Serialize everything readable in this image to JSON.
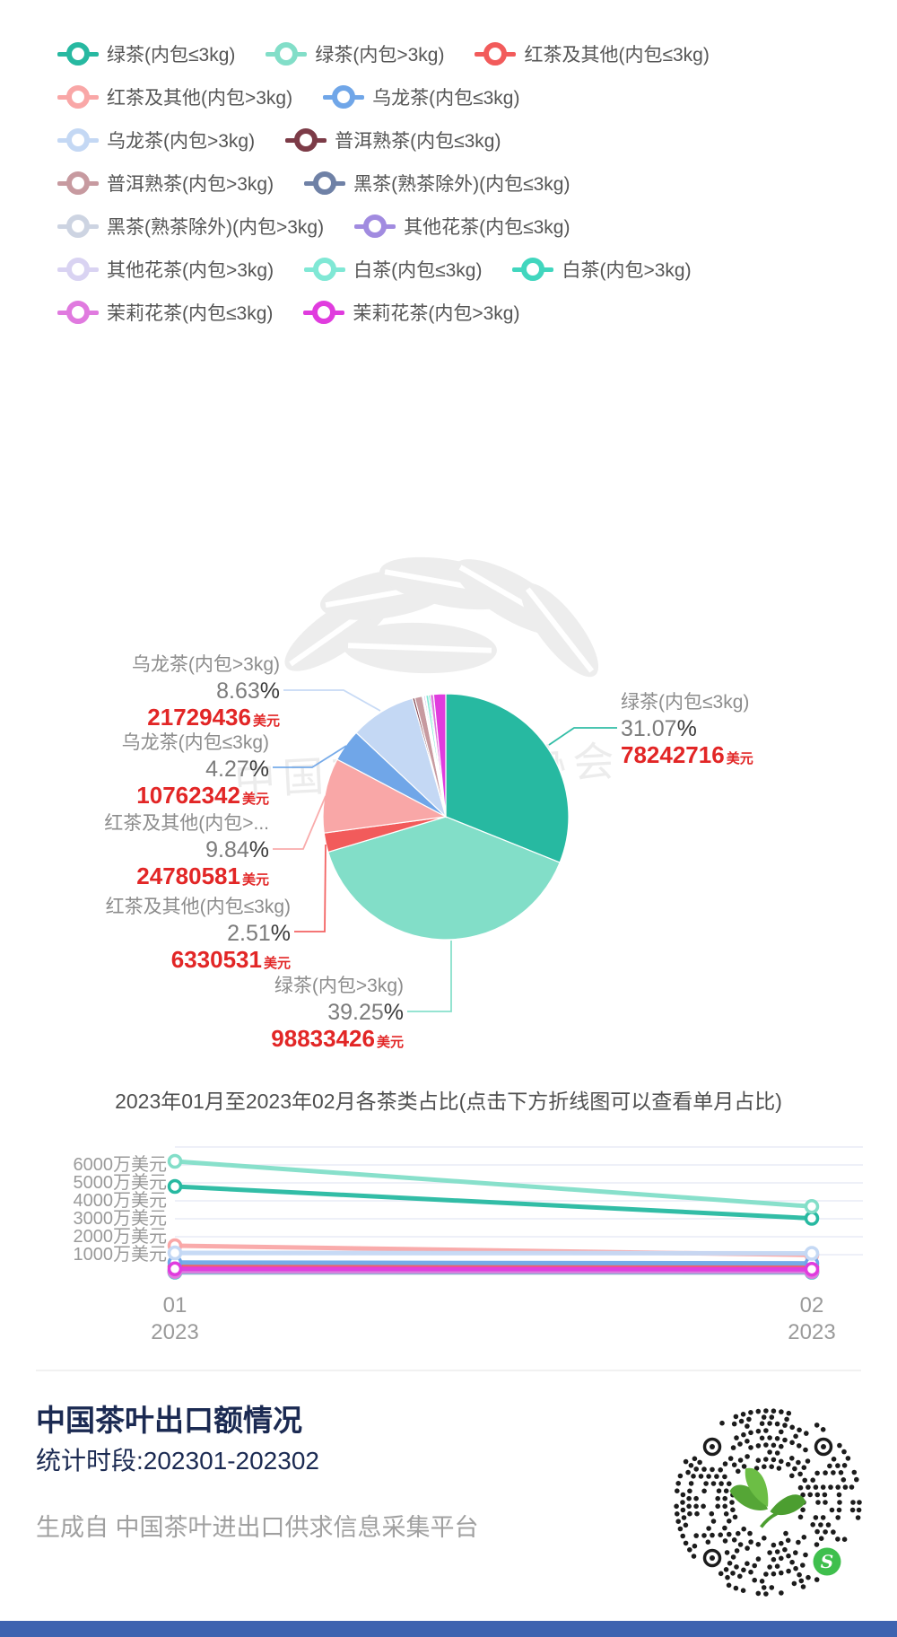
{
  "colors": {
    "money_red": "#E22626",
    "footer_navy": "#1b2a52",
    "bottom_bar_blue": "#3E63B0",
    "grid_line": "#e8ecf5"
  },
  "watermark_text": "中国茶叶流通协会",
  "chart_data": [
    {
      "type": "pie",
      "title": "",
      "series": [
        {
          "id": "green_le",
          "name": "绿茶(内包≤3kg)",
          "color": "#27B9A1",
          "pie_pct": 31.07,
          "value_usd": 78242716
        },
        {
          "id": "green_gt",
          "name": "绿茶(内包>3kg)",
          "color": "#82DEC8",
          "pie_pct": 39.25,
          "value_usd": 98833426
        },
        {
          "id": "black_le",
          "name": "红茶及其他(内包≤3kg)",
          "color": "#F25B5B",
          "pie_pct": 2.51,
          "value_usd": 6330531
        },
        {
          "id": "black_gt",
          "name": "红茶及其他(内包>3kg)",
          "color": "#F9A7A7",
          "pie_pct": 9.84,
          "value_usd": 24780581
        },
        {
          "id": "oolong_le",
          "name": "乌龙茶(内包≤3kg)",
          "color": "#70A6E8",
          "pie_pct": 4.27,
          "value_usd": 10762342
        },
        {
          "id": "oolong_gt",
          "name": "乌龙茶(内包>3kg)",
          "color": "#C4D8F4",
          "pie_pct": 8.63,
          "value_usd": 21729436
        },
        {
          "id": "puer_le",
          "name": "普洱熟茶(内包≤3kg)",
          "color": "#7C3B47",
          "pie_pct": 0.3
        },
        {
          "id": "puer_gt",
          "name": "普洱熟茶(内包>3kg)",
          "color": "#C79AA0",
          "pie_pct": 0.99
        },
        {
          "id": "dark_le",
          "name": "黑茶(熟茶除外)(内包≤3kg)",
          "color": "#6F81A6",
          "pie_pct": 0.11
        },
        {
          "id": "dark_gt",
          "name": "黑茶(熟茶除外)(内包>3kg)",
          "color": "#CDD4E2",
          "pie_pct": 0.09
        },
        {
          "id": "flower_le",
          "name": "其他花茶(内包≤3kg)",
          "color": "#A18BE0",
          "pie_pct": 0.19
        },
        {
          "id": "flower_gt",
          "name": "其他花茶(内包>3kg)",
          "color": "#D9D3F2",
          "pie_pct": 0.09
        },
        {
          "id": "white_le",
          "name": "白茶(内包≤3kg)",
          "color": "#80E8D5",
          "pie_pct": 0.34
        },
        {
          "id": "white_gt",
          "name": "白茶(内包>3kg)",
          "color": "#41D6BE",
          "pie_pct": 0.21
        },
        {
          "id": "jasmine_le",
          "name": "茉莉花茶(内包≤3kg)",
          "color": "#E07ADF",
          "pie_pct": 0.46
        },
        {
          "id": "jasmine_gt",
          "name": "茉莉花茶(内包>3kg)",
          "color": "#E03CDE",
          "pie_pct": 1.59
        }
      ]
    },
    {
      "type": "line",
      "title": "2023年01月至2023年02月各茶类占比(点击下方折线图可以查看单月占比)",
      "x": [
        "2023-01",
        "2023-02"
      ],
      "unit": "万美元",
      "ylim": [
        0,
        7000
      ],
      "grid": "on",
      "series": [
        {
          "id": "green_le",
          "values": [
            4800,
            3024
          ]
        },
        {
          "id": "green_gt",
          "values": [
            6200,
            3683
          ]
        },
        {
          "id": "black_le",
          "values": [
            330,
            303
          ]
        },
        {
          "id": "black_gt",
          "values": [
            1500,
            978
          ]
        },
        {
          "id": "oolong_le",
          "values": [
            560,
            516
          ]
        },
        {
          "id": "oolong_gt",
          "values": [
            1100,
            1073
          ]
        },
        {
          "id": "puer_le",
          "values": [
            40,
            35
          ]
        },
        {
          "id": "puer_gt",
          "values": [
            130,
            120
          ]
        },
        {
          "id": "dark_le",
          "values": [
            15,
            12
          ]
        },
        {
          "id": "dark_gt",
          "values": [
            12,
            10
          ]
        },
        {
          "id": "flower_le",
          "values": [
            25,
            22
          ]
        },
        {
          "id": "flower_gt",
          "values": [
            12,
            10
          ]
        },
        {
          "id": "white_le",
          "values": [
            45,
            40
          ]
        },
        {
          "id": "white_gt",
          "values": [
            28,
            24
          ]
        },
        {
          "id": "jasmine_le",
          "values": [
            60,
            55
          ]
        },
        {
          "id": "jasmine_gt",
          "values": [
            210,
            190
          ]
        }
      ]
    }
  ],
  "pie_labels": [
    {
      "id": "oolong_gt",
      "name": "乌龙茶(内包>3kg)",
      "pct": "8.63",
      "value": "21729436",
      "unit": "美元"
    },
    {
      "id": "oolong_le",
      "name": "乌龙茶(内包≤3kg)",
      "pct": "4.27",
      "value": "10762342",
      "unit": "美元"
    },
    {
      "id": "black_gt",
      "name": "红茶及其他(内包>...",
      "pct": "9.84",
      "value": "24780581",
      "unit": "美元"
    },
    {
      "id": "black_le",
      "name": "红茶及其他(内包≤3kg)",
      "pct": "2.51",
      "value": "6330531",
      "unit": "美元"
    },
    {
      "id": "green_gt",
      "name": "绿茶(内包>3kg)",
      "pct": "39.25",
      "value": "98833426",
      "unit": "美元"
    },
    {
      "id": "green_le",
      "name": "绿茶(内包≤3kg)",
      "pct": "31.07",
      "value": "78242716",
      "unit": "美元"
    }
  ],
  "line_chart": {
    "title": "2023年01月至2023年02月各茶类占比(点击下方折线图可以查看单月占比)",
    "y_ticks": [
      "6000万美元",
      "5000万美元",
      "4000万美元",
      "3000万美元",
      "2000万美元",
      "1000万美元"
    ],
    "x_ticks": [
      [
        "01",
        "2023"
      ],
      [
        "02",
        "2023"
      ]
    ]
  },
  "footer": {
    "title": "中国茶叶出口额情况",
    "period": "统计时段:202301-202302",
    "source": "生成自 中国茶叶进出口供求信息采集平台"
  }
}
